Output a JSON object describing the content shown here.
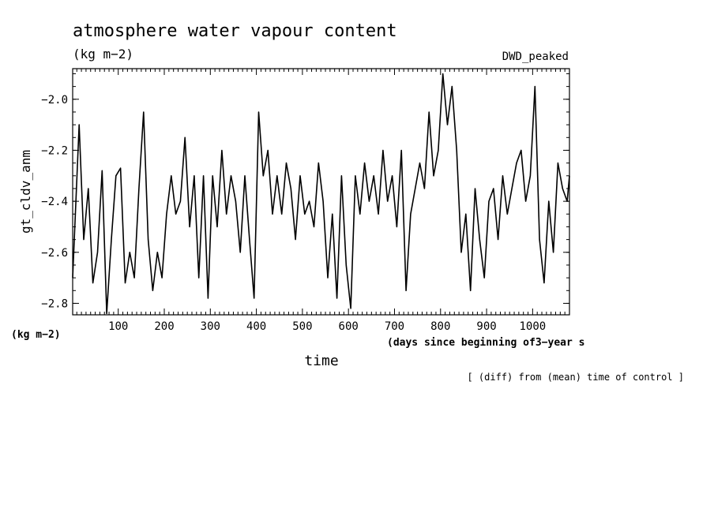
{
  "header": {
    "title": "atmosphere water vapour content",
    "units": "(kg m−2)",
    "experiment": "DWD_peaked"
  },
  "axes": {
    "ylabel": "gt_cldv_anm",
    "yunits": "(kg m−2)",
    "xlabel": "time",
    "xunits": "(days since beginning of3−year s",
    "footnote": "[ (diff) from (mean) time of control ]"
  },
  "chart_data": {
    "type": "line",
    "title": "atmosphere water vapour content",
    "xlabel": "time",
    "ylabel": "gt_cldv_anm",
    "xlim": [
      1,
      1080
    ],
    "ylim": [
      -2.845,
      -1.88
    ],
    "xticks": [
      100,
      200,
      300,
      400,
      500,
      600,
      700,
      800,
      900,
      1000
    ],
    "xtick_labels": [
      "100",
      "200",
      "300",
      "400",
      "500",
      "600",
      "700",
      "800",
      "900",
      "1000"
    ],
    "yticks": [
      -2.8,
      -2.6,
      -2.4,
      -2.2,
      -2.0
    ],
    "ytick_labels": [
      "−2.8",
      "−2.6",
      "−2.4",
      "−2.2",
      "−2.0"
    ],
    "grid": false,
    "series": [
      {
        "color": "#000000",
        "x": [
          1,
          15,
          25,
          35,
          45,
          55,
          65,
          75,
          85,
          95,
          105,
          115,
          125,
          135,
          145,
          155,
          165,
          175,
          185,
          195,
          205,
          215,
          225,
          235,
          245,
          255,
          265,
          275,
          285,
          295,
          305,
          315,
          325,
          335,
          345,
          355,
          365,
          375,
          385,
          395,
          405,
          415,
          425,
          435,
          445,
          455,
          465,
          475,
          485,
          495,
          505,
          515,
          525,
          535,
          545,
          555,
          565,
          575,
          585,
          595,
          605,
          615,
          625,
          635,
          645,
          655,
          665,
          675,
          685,
          695,
          705,
          715,
          725,
          735,
          745,
          755,
          765,
          775,
          785,
          795,
          805,
          815,
          825,
          835,
          845,
          855,
          865,
          875,
          885,
          895,
          905,
          915,
          925,
          935,
          945,
          955,
          965,
          975,
          985,
          995,
          1005,
          1015,
          1025,
          1035,
          1045,
          1055,
          1065,
          1075,
          1080
        ],
        "y": [
          -2.7,
          -2.1,
          -2.55,
          -2.35,
          -2.72,
          -2.6,
          -2.28,
          -2.84,
          -2.55,
          -2.3,
          -2.27,
          -2.72,
          -2.6,
          -2.7,
          -2.35,
          -2.05,
          -2.55,
          -2.75,
          -2.6,
          -2.7,
          -2.45,
          -2.3,
          -2.45,
          -2.4,
          -2.15,
          -2.5,
          -2.3,
          -2.7,
          -2.3,
          -2.78,
          -2.3,
          -2.5,
          -2.2,
          -2.45,
          -2.3,
          -2.4,
          -2.6,
          -2.3,
          -2.55,
          -2.78,
          -2.05,
          -2.3,
          -2.2,
          -2.45,
          -2.3,
          -2.45,
          -2.25,
          -2.35,
          -2.55,
          -2.3,
          -2.45,
          -2.4,
          -2.5,
          -2.25,
          -2.4,
          -2.7,
          -2.45,
          -2.78,
          -2.3,
          -2.65,
          -2.82,
          -2.3,
          -2.45,
          -2.25,
          -2.4,
          -2.3,
          -2.45,
          -2.2,
          -2.4,
          -2.3,
          -2.5,
          -2.2,
          -2.75,
          -2.45,
          -2.35,
          -2.25,
          -2.35,
          -2.05,
          -2.3,
          -2.2,
          -1.9,
          -2.1,
          -1.95,
          -2.2,
          -2.6,
          -2.45,
          -2.75,
          -2.35,
          -2.55,
          -2.7,
          -2.4,
          -2.35,
          -2.55,
          -2.3,
          -2.45,
          -2.35,
          -2.25,
          -2.2,
          -2.4,
          -2.3,
          -1.95,
          -2.55,
          -2.72,
          -2.4,
          -2.6,
          -2.25,
          -2.35,
          -2.4,
          -2.3
        ]
      }
    ]
  }
}
